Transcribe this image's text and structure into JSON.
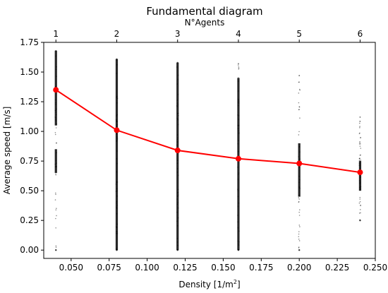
{
  "chart_data": {
    "type": "scatter",
    "title": "Fundamental diagram",
    "xlabel": "Density [1/m",
    "xlabel_sup": "2",
    "xlabel_end": "]",
    "ylabel": "Average speed [m/s]",
    "top_xlabel": "N°Agents",
    "xlim": [
      0.032,
      0.25
    ],
    "ylim": [
      -0.07,
      1.75
    ],
    "x_ticks": [
      0.05,
      0.075,
      0.1,
      0.125,
      0.15,
      0.175,
      0.2,
      0.225,
      0.25
    ],
    "x_tick_labels": [
      "0.050",
      "0.075",
      "0.100",
      "0.125",
      "0.150",
      "0.175",
      "0.200",
      "0.225",
      "0.250"
    ],
    "y_ticks": [
      0.0,
      0.25,
      0.5,
      0.75,
      1.0,
      1.25,
      1.5,
      1.75
    ],
    "y_tick_labels": [
      "0.00",
      "0.25",
      "0.50",
      "0.75",
      "1.00",
      "1.25",
      "1.50",
      "1.75"
    ],
    "top_ticks": [
      0.04,
      0.08,
      0.12,
      0.16,
      0.2,
      0.24
    ],
    "top_tick_labels": [
      "1",
      "2",
      "3",
      "4",
      "5",
      "6"
    ],
    "grid": false,
    "series": [
      {
        "kind": "scatter",
        "color": "#000000",
        "clusters": [
          {
            "x": 0.04,
            "ymin": 0.0,
            "ymax": 1.68,
            "dense_ranges": [
              [
                0.65,
                0.85
              ],
              [
                1.05,
                1.68
              ]
            ]
          },
          {
            "x": 0.08,
            "ymin": 0.0,
            "ymax": 1.61,
            "dense_ranges": [
              [
                0.0,
                1.61
              ]
            ]
          },
          {
            "x": 0.12,
            "ymin": 0.0,
            "ymax": 1.58,
            "dense_ranges": [
              [
                0.0,
                1.58
              ]
            ]
          },
          {
            "x": 0.16,
            "ymin": 0.0,
            "ymax": 1.57,
            "dense_ranges": [
              [
                0.0,
                1.45
              ]
            ]
          },
          {
            "x": 0.2,
            "ymin": 0.0,
            "ymax": 1.47,
            "dense_ranges": [
              [
                0.45,
                0.9
              ]
            ]
          },
          {
            "x": 0.24,
            "ymin": 0.25,
            "ymax": 1.12,
            "dense_ranges": [
              [
                0.5,
                0.75
              ]
            ]
          }
        ]
      },
      {
        "kind": "line",
        "color": "#ff0000",
        "x": [
          0.04,
          0.08,
          0.12,
          0.16,
          0.2,
          0.24
        ],
        "y": [
          1.35,
          1.01,
          0.84,
          0.77,
          0.73,
          0.655
        ]
      }
    ]
  }
}
